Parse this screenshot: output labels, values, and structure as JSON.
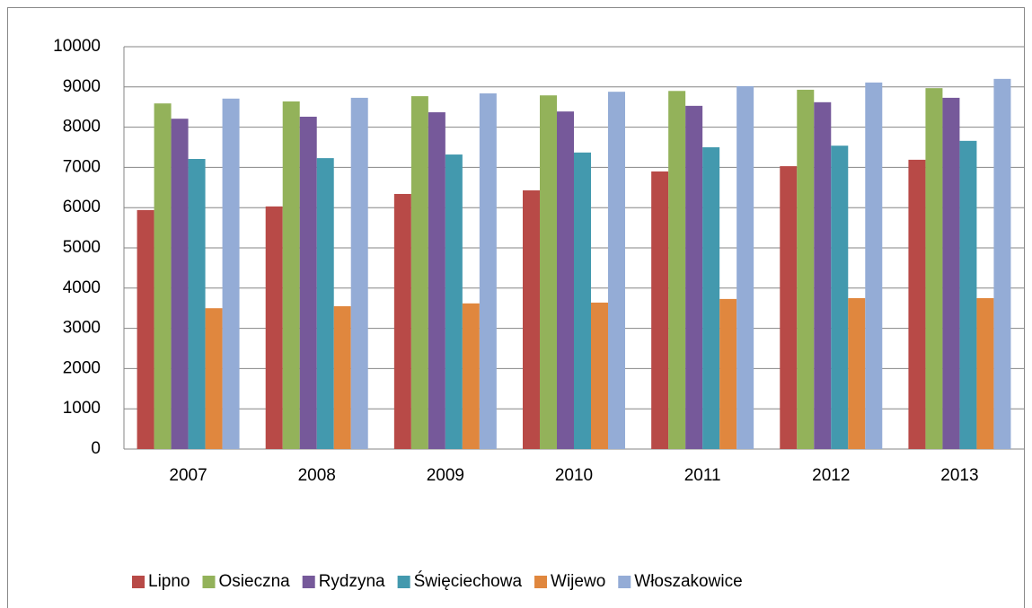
{
  "chart_data": {
    "type": "bar",
    "categories": [
      "2007",
      "2008",
      "2009",
      "2010",
      "2011",
      "2012",
      "2013"
    ],
    "series": [
      {
        "name": "Lipno",
        "color": "#b84a47",
        "values": [
          5940,
          6030,
          6340,
          6430,
          6900,
          7030,
          7190
        ]
      },
      {
        "name": "Osieczna",
        "color": "#93b25a",
        "values": [
          8590,
          8640,
          8770,
          8790,
          8900,
          8930,
          8970
        ]
      },
      {
        "name": "Rydzyna",
        "color": "#76599a",
        "values": [
          8210,
          8260,
          8370,
          8390,
          8530,
          8620,
          8730
        ]
      },
      {
        "name": "Święciechowa",
        "color": "#4399ae",
        "values": [
          7210,
          7230,
          7320,
          7370,
          7500,
          7540,
          7660
        ]
      },
      {
        "name": "Wijewo",
        "color": "#e0873e",
        "values": [
          3500,
          3550,
          3620,
          3640,
          3730,
          3750,
          3750
        ]
      },
      {
        "name": "Włoszakowice",
        "color": "#94acd6",
        "values": [
          8710,
          8730,
          8840,
          8880,
          9020,
          9110,
          9200
        ]
      }
    ],
    "ylim": [
      0,
      10000
    ],
    "yticks": [
      0,
      1000,
      2000,
      3000,
      4000,
      5000,
      6000,
      7000,
      8000,
      9000,
      10000
    ],
    "grid": true,
    "legend": "bottom"
  }
}
